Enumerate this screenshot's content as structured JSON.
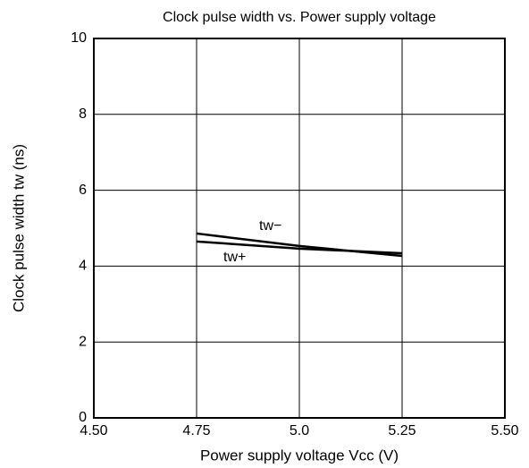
{
  "chart_data": {
    "type": "line",
    "title": "Clock pulse width vs. Power supply voltage",
    "x_label": "Power supply voltage   Vcc (V)",
    "y_label": "Clock pulse width   tw (ns)",
    "x": [
      4.75,
      5.0,
      5.25
    ],
    "series": [
      {
        "name": "tw−",
        "color": "#000000",
        "values": [
          4.86,
          4.53,
          4.27
        ]
      },
      {
        "name": "tw+",
        "color": "#000000",
        "values": [
          4.65,
          4.46,
          4.34
        ]
      }
    ],
    "xlim": [
      4.5,
      5.5
    ],
    "xticks": [
      {
        "value": 4.5,
        "label": "4.50"
      },
      4.75,
      {
        "value": 5.0,
        "label": "5.0"
      },
      5.25,
      {
        "value": 5.5,
        "label": "5.50"
      }
    ],
    "ylim": [
      0,
      10
    ],
    "yticks": [
      0,
      2,
      4,
      6,
      8,
      10
    ],
    "grid": true
  }
}
